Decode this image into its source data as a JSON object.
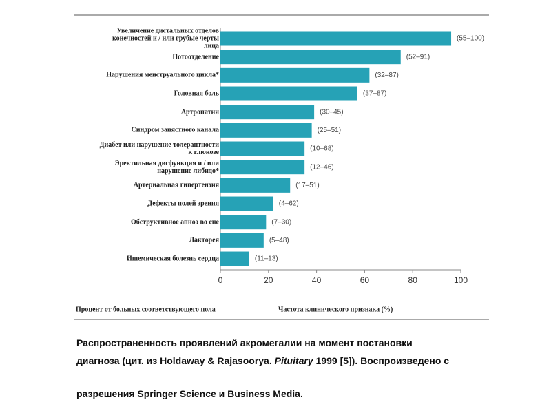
{
  "chart_data": {
    "type": "hbar",
    "categories": [
      "Увеличение дистальных отделов\nконечностей и / или грубые черты\nлица",
      "Потоотделение",
      "Нарушения менструального цикла*",
      "Головная боль",
      "Артропатии",
      "Синдром запястного канала",
      "Диабет или нарушение толерантности\nк глюкозе",
      "Эректильная дисфункция и / или\nнарушение либидо*",
      "Артериальная гипертензия",
      "Дефекты полей зрения",
      "Обструктивное апноэ во сне",
      "Лакторея",
      "Ишемическая болезнь сердца"
    ],
    "values": [
      96,
      75,
      62,
      57,
      39,
      38,
      35,
      35,
      29,
      22,
      19,
      18,
      12
    ],
    "range_labels": [
      "(55–100)",
      "(52–91)",
      "(32–87)",
      "(37–87)",
      "(30–45)",
      "(25–51)",
      "(10–68)",
      "(12–46)",
      "(17–51)",
      "(4–62)",
      "(7–30)",
      "(5–48)",
      "(11–13)"
    ],
    "color": "#26a2b6",
    "xlim": [
      0,
      100
    ],
    "xticks": [
      0,
      20,
      40,
      60,
      80,
      100
    ],
    "xlabel": "Частота клинического признака (%)",
    "footnote": "Процент от больных соответствующего пола"
  },
  "caption": [
    "Распространенность проявлений акромегалии на момент постановки",
    "диагноза (цит. из Holdaway & Rajasoorya. ",
    "Pituitary",
    " 1999 [5]). Воспроизведено с",
    "разрешения Springer Science и Business Media."
  ]
}
